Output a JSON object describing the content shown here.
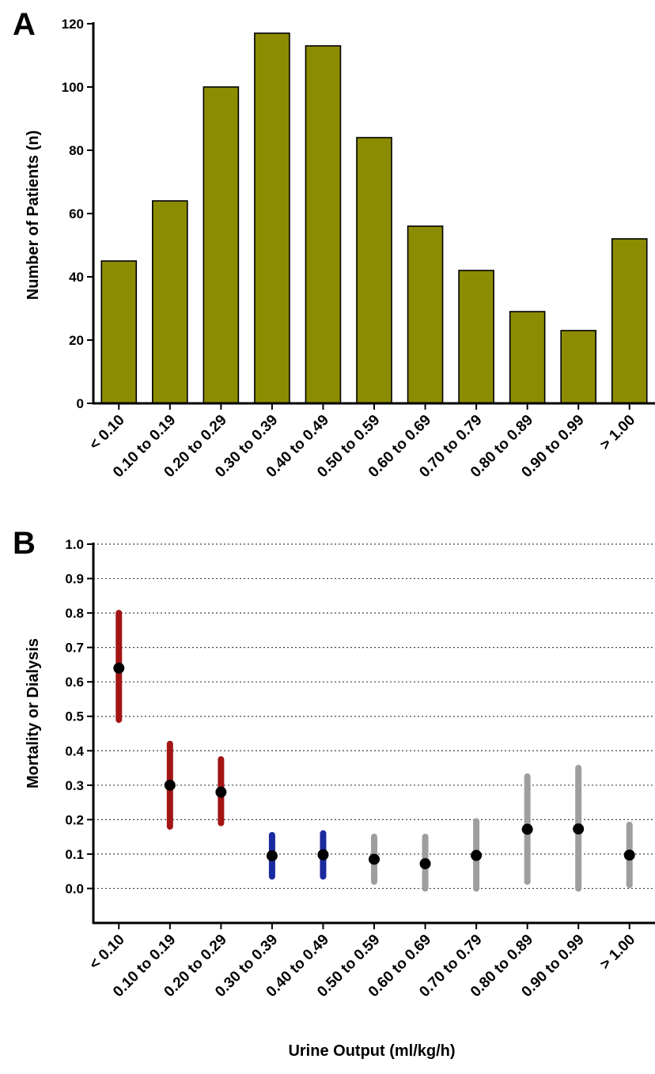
{
  "panels": {
    "a_label": "A",
    "b_label": "B"
  },
  "chart_data": [
    {
      "type": "bar",
      "panel": "A",
      "categories": [
        "< 0.10",
        "0.10 to 0.19",
        "0.20 to 0.29",
        "0.30 to 0.39",
        "0.40 to 0.49",
        "0.50 to 0.59",
        "0.60 to 0.69",
        "0.70 to 0.79",
        "0.80 to 0.89",
        "0.90 to 0.99",
        "> 1.00"
      ],
      "values": [
        45,
        64,
        100,
        117,
        113,
        84,
        56,
        42,
        29,
        23,
        52
      ],
      "ylabel": "Number of Patients (n)",
      "xlabel": "",
      "ylim": [
        0,
        120
      ],
      "yticks": [
        "0",
        "20",
        "40",
        "60",
        "80",
        "100",
        "120"
      ],
      "bar_color": "#8c8c00",
      "grid": false
    },
    {
      "type": "scatter",
      "panel": "B",
      "categories": [
        "< 0.10",
        "0.10 to 0.19",
        "0.20 to 0.29",
        "0.30 to 0.39",
        "0.40 to 0.49",
        "0.50 to 0.59",
        "0.60 to 0.69",
        "0.70 to 0.79",
        "0.80 to 0.89",
        "0.90 to 0.99",
        "> 1.00"
      ],
      "values": [
        0.64,
        0.3,
        0.28,
        0.095,
        0.098,
        0.085,
        0.072,
        0.096,
        0.172,
        0.173,
        0.097
      ],
      "lower": [
        0.49,
        0.18,
        0.19,
        0.035,
        0.035,
        0.02,
        0.0,
        0.0,
        0.02,
        0.0,
        0.01
      ],
      "upper": [
        0.8,
        0.42,
        0.375,
        0.155,
        0.16,
        0.15,
        0.15,
        0.195,
        0.325,
        0.35,
        0.185
      ],
      "bar_colors": [
        "#a31515",
        "#a31515",
        "#a31515",
        "#1a2aa0",
        "#1a2aa0",
        "#9e9e9e",
        "#9e9e9e",
        "#9e9e9e",
        "#9e9e9e",
        "#9e9e9e",
        "#9e9e9e"
      ],
      "point_color": "#000000",
      "ylabel": "Mortality or Dialysis",
      "xlabel": "Urine Output (ml/kg/h)",
      "ylim": [
        -0.1,
        1.0
      ],
      "yticks": [
        "0.0",
        "0.1",
        "0.2",
        "0.3",
        "0.4",
        "0.5",
        "0.6",
        "0.7",
        "0.8",
        "0.9",
        "1.0"
      ],
      "grid": "horizontal dotted"
    }
  ]
}
